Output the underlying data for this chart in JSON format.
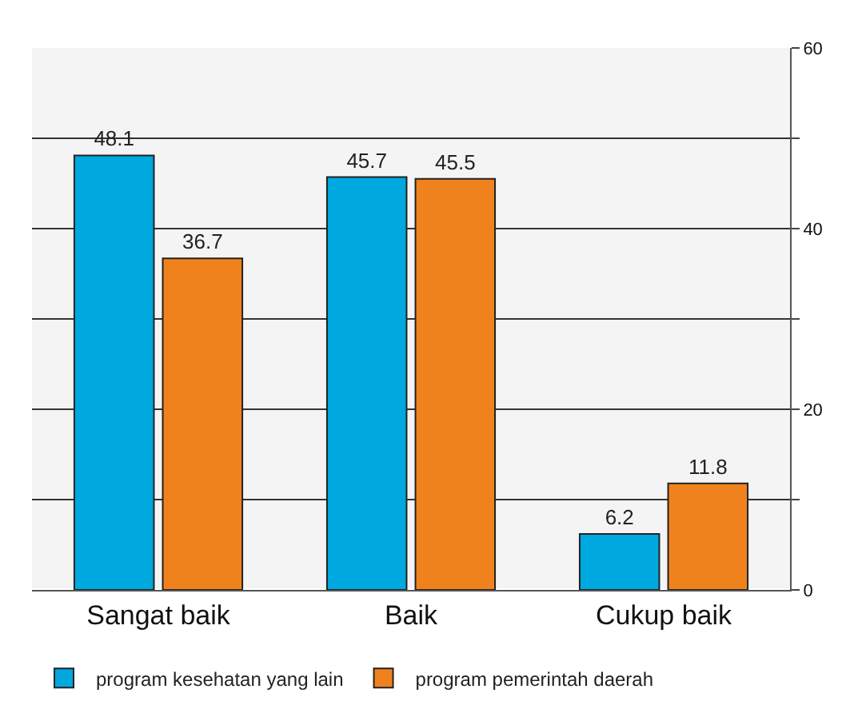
{
  "chart_data": {
    "type": "bar",
    "categories": [
      "Sangat baik",
      "Baik",
      "Cukup baik"
    ],
    "series": [
      {
        "name": "program kesehatan yang lain",
        "color": "#00a8e0",
        "values": [
          48.1,
          45.7,
          6.2
        ]
      },
      {
        "name": "program pemerintah daerah",
        "color": "#f0821e",
        "values": [
          36.7,
          45.5,
          11.8
        ]
      }
    ],
    "ylim": [
      0,
      60
    ],
    "yticks": [
      0,
      {
        "value": 10,
        "label": null
      },
      20,
      {
        "value": 30,
        "label": null
      },
      40,
      {
        "value": 50,
        "label": null
      },
      60
    ],
    "grid": "y",
    "legend": "bottom",
    "data_labels": true
  }
}
